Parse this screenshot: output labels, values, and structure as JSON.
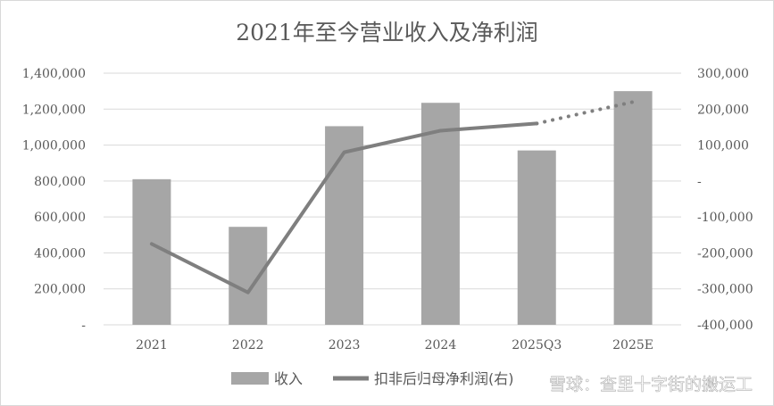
{
  "chart_data": {
    "type": "bar+line",
    "title": "2021年至今营业收入及净利润",
    "categories": [
      "2021",
      "2022",
      "2023",
      "2024",
      "2025Q3",
      "2025E"
    ],
    "series": [
      {
        "name": "收入",
        "type": "bar",
        "axis": "left",
        "color": "#a6a6a6",
        "values": [
          810000,
          545000,
          1105000,
          1235000,
          970000,
          1300000
        ]
      },
      {
        "name": "扣非后归母净利润(右)",
        "type": "line",
        "axis": "right",
        "color": "#7f7f7f",
        "values": [
          -175000,
          -310000,
          80000,
          140000,
          160000,
          220000
        ],
        "dotted_from_index": 4
      }
    ],
    "y_left": {
      "min": 0,
      "max": 1400000,
      "step": 200000,
      "tick_labels": [
        "-",
        "200,000",
        "400,000",
        "600,000",
        "800,000",
        "1,000,000",
        "1,200,000",
        "1,400,000"
      ]
    },
    "y_right": {
      "min": -400000,
      "max": 300000,
      "step": 100000,
      "tick_labels": [
        "-400,000",
        "-300,000",
        "-200,000",
        "-100,000",
        "-",
        "100,000",
        "200,000",
        "300,000"
      ]
    },
    "grid": true,
    "legend": {
      "position": "bottom",
      "items": [
        "收入",
        "扣非后归母净利润(右)"
      ]
    }
  },
  "watermark": "雪球：查里十字街的搬运工",
  "colors": {
    "bar": "#a6a6a6",
    "line": "#7f7f7f",
    "grid": "#d9d9d9",
    "text": "#595959"
  }
}
